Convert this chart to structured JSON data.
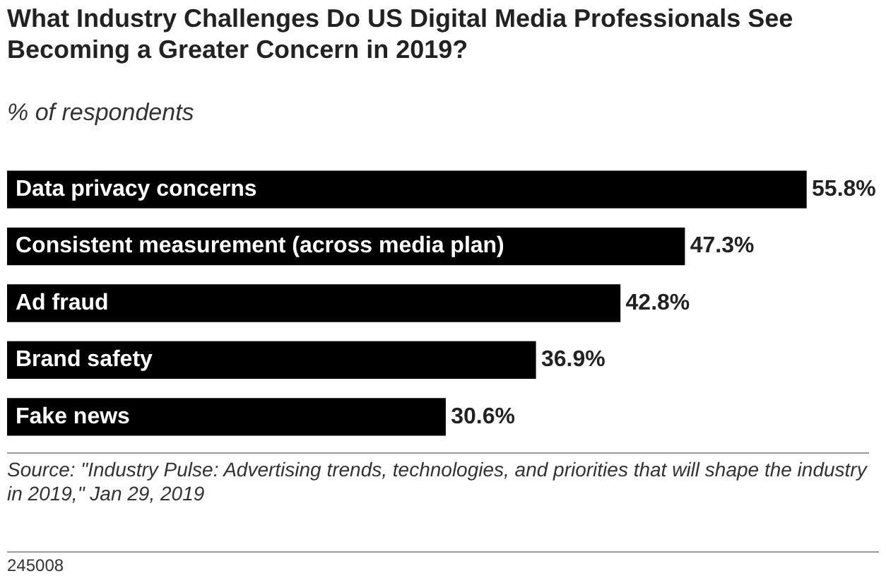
{
  "chart_data": {
    "type": "bar",
    "orientation": "horizontal",
    "title": "What Industry Challenges Do US Digital Media Professionals See Becoming a Greater Concern in 2019?",
    "subtitle": "% of respondents",
    "categories": [
      "Data privacy concerns",
      "Consistent measurement (across media plan)",
      "Ad fraud",
      "Brand safety",
      "Fake news"
    ],
    "values": [
      55.8,
      47.3,
      42.8,
      36.9,
      30.6
    ],
    "color": "#000000",
    "value_labels": [
      "55.8%",
      "47.3%",
      "42.8%",
      "36.9%",
      "30.6%"
    ],
    "annotations": [
      "Source: \"Industry Pulse: Advertising trends, technologies, and priorities that will shape the industry in 2019,\" Jan 29, 2019",
      "245008"
    ],
    "legend": false
  }
}
